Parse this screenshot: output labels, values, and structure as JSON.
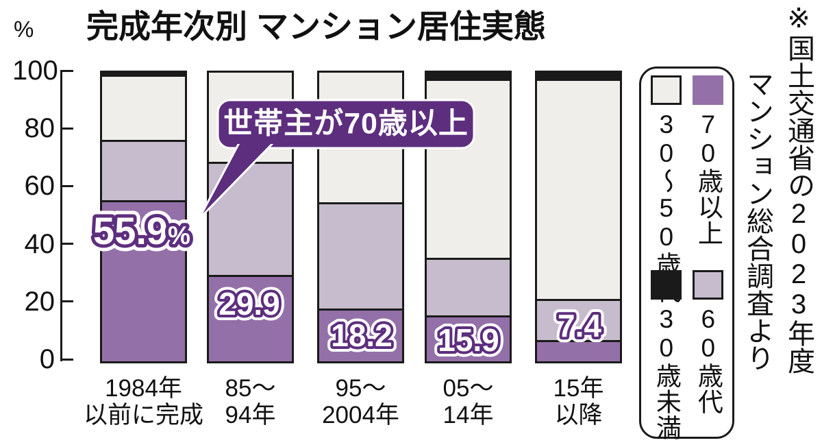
{
  "title": "完成年次別 マンション居住実態",
  "y_axis": {
    "unit": "%",
    "ticks": [
      "100",
      "80",
      "60",
      "40",
      "20",
      "0"
    ]
  },
  "callout": {
    "label": "世帯主が70歳以上"
  },
  "source": {
    "column1": "※国土交通省の2023年度",
    "column2": "マンション総合調査より"
  },
  "colors": {
    "purple_70plus": "#9470a8",
    "lavender_60s": "#c6bccd",
    "gray_30to50": "#efeeea",
    "black_under30": "#1a1a1a",
    "callout_purple": "#5d2e7e",
    "outline_black": "#1a1a1a",
    "label_fill": "#ffffff"
  },
  "legend": {
    "items": [
      {
        "label": "30〜50歳代",
        "color": "#efeeea",
        "swatch_border": true
      },
      {
        "label": "70歳以上",
        "color": "#9470a8",
        "swatch_border": false
      },
      {
        "label": "30歳未満",
        "color": "#1a1a1a",
        "swatch_border": false
      },
      {
        "label": "60歳代",
        "color": "#c6bccd",
        "swatch_border": true
      }
    ]
  },
  "chart_data": {
    "type": "bar",
    "stacked": true,
    "title": "完成年次別 マンション居住実態",
    "ylabel": "%",
    "ylim": [
      0,
      100
    ],
    "grid": false,
    "legend_position": "right",
    "categories": [
      "1984年以前に完成",
      "85〜94年",
      "95〜2004年",
      "05〜14年",
      "15年以降"
    ],
    "category_lines": [
      [
        "1984年",
        "以前に完成"
      ],
      [
        "85〜",
        "94年"
      ],
      [
        "95〜",
        "2004年"
      ],
      [
        "05〜",
        "14年"
      ],
      [
        "15年",
        "以降"
      ]
    ],
    "series": [
      {
        "key": "70plus",
        "name": "70歳以上",
        "color": "#9470a8",
        "values": [
          55.9,
          29.9,
          18.2,
          15.9,
          7.4
        ]
      },
      {
        "key": "60s",
        "name": "60歳代",
        "color": "#c6bccd",
        "values": [
          20.8,
          39.2,
          37.0,
          19.9,
          14.3
        ]
      },
      {
        "key": "30to50",
        "name": "30〜50歳代",
        "color": "#efeeea",
        "values": [
          22.5,
          30.9,
          44.8,
          62.1,
          76.2
        ]
      },
      {
        "key": "under30",
        "name": "30歳未満",
        "color": "#1a1a1a",
        "values": [
          0.8,
          0.0,
          0.0,
          2.1,
          2.1
        ]
      }
    ],
    "value_labels": [
      "55.9%",
      "29.9",
      "18.2",
      "15.9",
      "7.4"
    ],
    "annotation": "世帯主が70歳以上"
  }
}
